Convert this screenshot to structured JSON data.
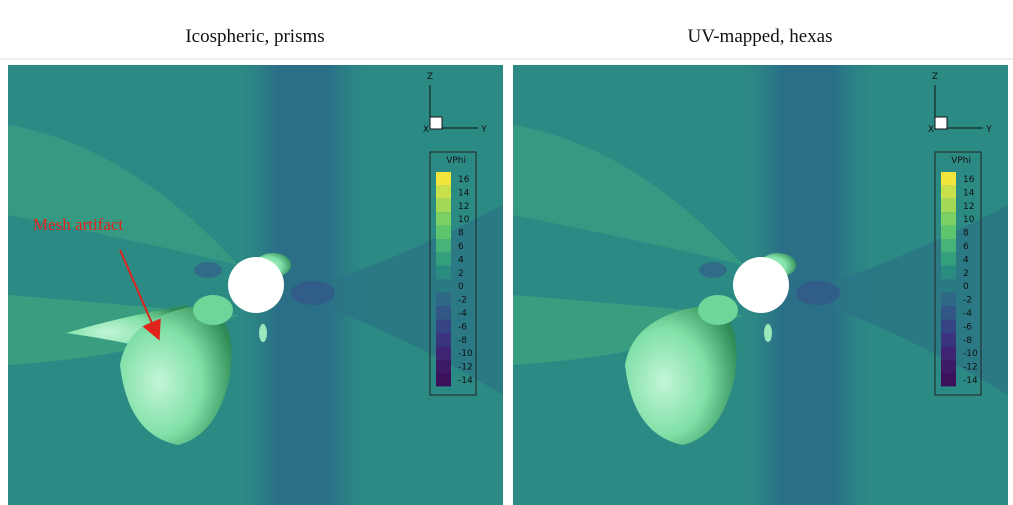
{
  "panels": [
    {
      "title": "Icospheric, prisms",
      "annotation": "Mesh artifact",
      "axes": {
        "z": "Z",
        "x": "X",
        "y": "Y"
      },
      "legend": {
        "title": "VPhi",
        "labels": [
          "16",
          "14",
          "12",
          "10",
          "8",
          "6",
          "4",
          "2",
          "0",
          "-2",
          "-4",
          "-6",
          "-8",
          "-10",
          "-12",
          "-14"
        ]
      }
    },
    {
      "title": "UV-mapped, hexas",
      "axes": {
        "z": "Z",
        "x": "X",
        "y": "Y"
      },
      "legend": {
        "title": "VPhi",
        "labels": [
          "16",
          "14",
          "12",
          "10",
          "8",
          "6",
          "4",
          "2",
          "0",
          "-2",
          "-4",
          "-6",
          "-8",
          "-10",
          "-12",
          "-14"
        ]
      }
    }
  ]
}
